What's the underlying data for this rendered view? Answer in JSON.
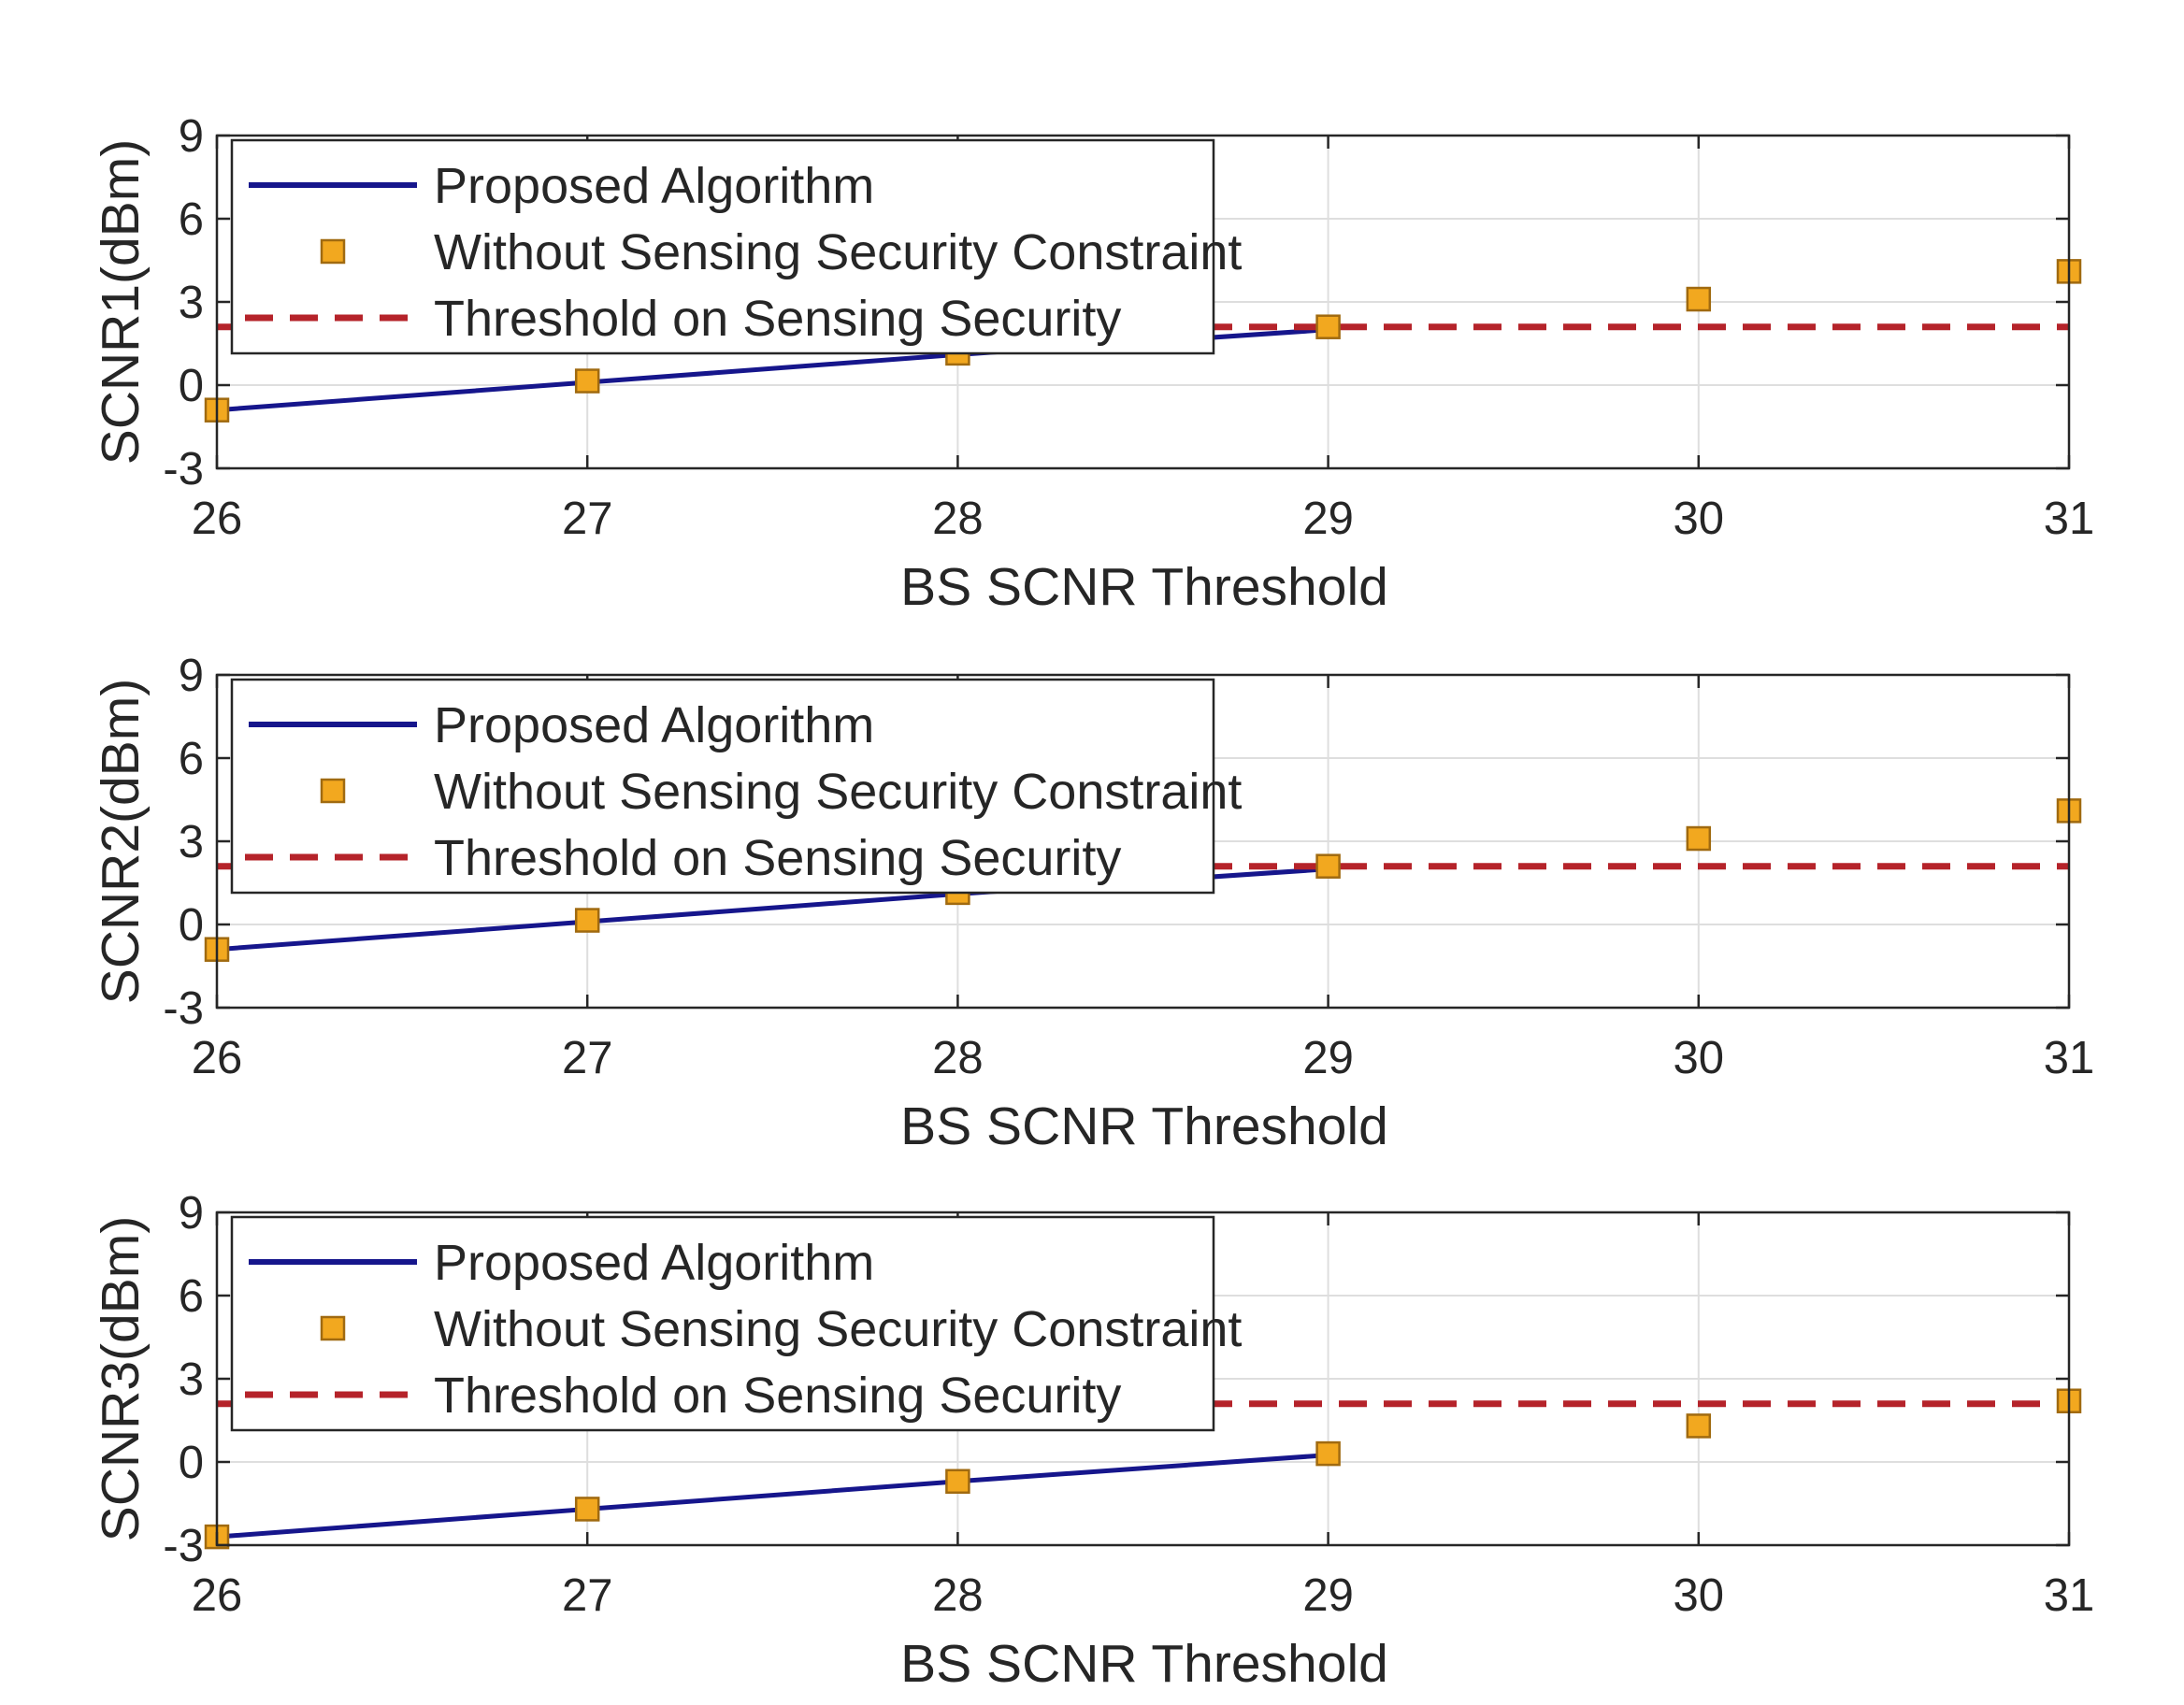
{
  "chart_data": [
    {
      "type": "line",
      "xlabel": "BS SCNR Threshold",
      "ylabel": "SCNR1(dBm)",
      "xlim": [
        26,
        31
      ],
      "ylim": [
        -3,
        9
      ],
      "xticks": [
        "26",
        "27",
        "28",
        "29",
        "30",
        "31"
      ],
      "yticks": [
        "-3",
        "0",
        "3",
        "6",
        "9"
      ],
      "grid": true,
      "legend_position": "top-left",
      "series": [
        {
          "name": "Proposed Algorithm",
          "style": "solid-line",
          "color": "#16168c",
          "x": [
            26,
            27,
            28,
            29
          ],
          "y": [
            -0.9,
            0.1,
            1.1,
            2.0
          ]
        },
        {
          "name": "Without Sensing Security Constraint",
          "style": "square-marker",
          "color": "#f2a81f",
          "x": [
            26,
            27,
            28,
            29,
            30,
            31
          ],
          "y": [
            -0.9,
            0.15,
            1.15,
            2.1,
            3.1,
            4.1
          ]
        },
        {
          "name": "Threshold on Sensing Security",
          "style": "dashed-line",
          "color": "#b5232a",
          "x": [
            26,
            31
          ],
          "y": [
            2.1,
            2.1
          ]
        }
      ]
    },
    {
      "type": "line",
      "xlabel": "BS SCNR Threshold",
      "ylabel": "SCNR2(dBm)",
      "xlim": [
        26,
        31
      ],
      "ylim": [
        -3,
        9
      ],
      "xticks": [
        "26",
        "27",
        "28",
        "29",
        "30",
        "31"
      ],
      "yticks": [
        "-3",
        "0",
        "3",
        "6",
        "9"
      ],
      "grid": true,
      "legend_position": "top-left",
      "series": [
        {
          "name": "Proposed Algorithm",
          "style": "solid-line",
          "color": "#16168c",
          "x": [
            26,
            27,
            28,
            29
          ],
          "y": [
            -0.9,
            0.1,
            1.1,
            2.0
          ]
        },
        {
          "name": "Without Sensing Security Constraint",
          "style": "square-marker",
          "color": "#f2a81f",
          "x": [
            26,
            27,
            28,
            29,
            30,
            31
          ],
          "y": [
            -0.9,
            0.15,
            1.15,
            2.1,
            3.1,
            4.1
          ]
        },
        {
          "name": "Threshold on Sensing Security",
          "style": "dashed-line",
          "color": "#b5232a",
          "x": [
            26,
            31
          ],
          "y": [
            2.1,
            2.1
          ]
        }
      ]
    },
    {
      "type": "line",
      "xlabel": "BS SCNR Threshold",
      "ylabel": "SCNR3(dBm)",
      "xlim": [
        26,
        31
      ],
      "ylim": [
        -3,
        9
      ],
      "xticks": [
        "26",
        "27",
        "28",
        "29",
        "30",
        "31"
      ],
      "yticks": [
        "-3",
        "0",
        "3",
        "6",
        "9"
      ],
      "grid": true,
      "legend_position": "top-left",
      "series": [
        {
          "name": "Proposed Algorithm",
          "style": "solid-line",
          "color": "#16168c",
          "x": [
            26,
            27,
            28,
            29
          ],
          "y": [
            -2.7,
            -1.7,
            -0.7,
            0.25
          ]
        },
        {
          "name": "Without Sensing Security Constraint",
          "style": "square-marker",
          "color": "#f2a81f",
          "x": [
            26,
            27,
            28,
            29,
            30,
            31
          ],
          "y": [
            -2.7,
            -1.7,
            -0.7,
            0.3,
            1.3,
            2.2
          ]
        },
        {
          "name": "Threshold on Sensing Security",
          "style": "dashed-line",
          "color": "#b5232a",
          "x": [
            26,
            31
          ],
          "y": [
            2.1,
            2.1
          ]
        }
      ]
    }
  ]
}
